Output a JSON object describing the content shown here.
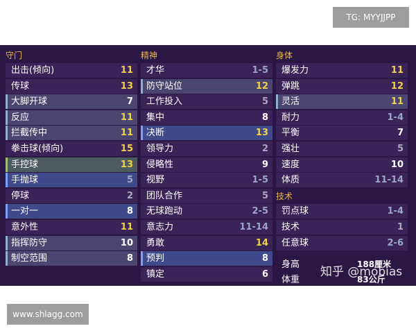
{
  "badge_top": "TG: MYYJJPP",
  "badge_bottom": "www.shlagg.com",
  "columns": [
    {
      "header": "守门",
      "rows": [
        {
          "label": "出击(倾向)",
          "value": 11
        },
        {
          "label": "传球",
          "value": 13
        },
        {
          "label": "大脚开球",
          "value": 7
        },
        {
          "label": "反应",
          "value": 11
        },
        {
          "label": "拦截传中",
          "value": 11
        },
        {
          "label": "拳击球(倾向)",
          "value": 15
        },
        {
          "label": "手控球",
          "value": 13
        },
        {
          "label": "手抛球",
          "value": 5
        },
        {
          "label": "停球",
          "value": 2
        },
        {
          "label": "一对一",
          "value": 8
        },
        {
          "label": "意外性",
          "value": 11
        },
        {
          "label": "指挥防守",
          "value": 10
        },
        {
          "label": "制空范围",
          "value": 8
        }
      ]
    },
    {
      "header": "精神",
      "rows": [
        {
          "label": "才华",
          "value": "1-5"
        },
        {
          "label": "防守站位",
          "value": 12
        },
        {
          "label": "工作投入",
          "value": 5
        },
        {
          "label": "集中",
          "value": 8
        },
        {
          "label": "决断",
          "value": 13
        },
        {
          "label": "领导力",
          "value": 2
        },
        {
          "label": "侵略性",
          "value": 9
        },
        {
          "label": "视野",
          "value": "1-5"
        },
        {
          "label": "团队合作",
          "value": 5
        },
        {
          "label": "无球跑动",
          "value": "2-5"
        },
        {
          "label": "意志力",
          "value": "11-14"
        },
        {
          "label": "勇敢",
          "value": 14
        },
        {
          "label": "预判",
          "value": 8
        },
        {
          "label": "镇定",
          "value": 6
        }
      ]
    },
    {
      "header": "身体",
      "rows": [
        {
          "label": "爆发力",
          "value": 11
        },
        {
          "label": "弹跳",
          "value": 12
        },
        {
          "label": "灵活",
          "value": 11
        },
        {
          "label": "耐力",
          "value": "1-4"
        },
        {
          "label": "平衡",
          "value": 7
        },
        {
          "label": "强壮",
          "value": 5
        },
        {
          "label": "速度",
          "value": 10
        },
        {
          "label": "体质",
          "value": "11-14"
        }
      ]
    }
  ],
  "technical": {
    "header": "技术",
    "rows": [
      {
        "label": "罚点球",
        "value": "1-4"
      },
      {
        "label": "技术",
        "value": 1
      },
      {
        "label": "任意球",
        "value": "2-6"
      }
    ]
  },
  "height": {
    "label": "身高",
    "value": "188厘米"
  },
  "weight": {
    "label": "体重",
    "value": "83公斤"
  },
  "watermark": "知乎 @mobias"
}
